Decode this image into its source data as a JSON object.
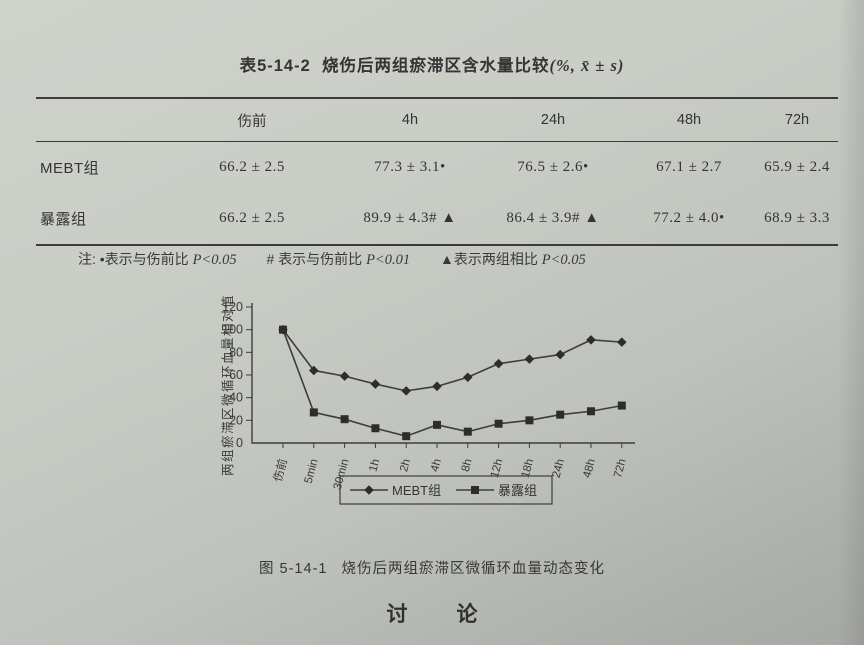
{
  "page": {
    "table_title": {
      "prefix": "表5-14-2",
      "main": "烧伤后两组瘀滞区含水量比较",
      "stat": "(%, x̄ ± s)"
    },
    "table": {
      "columns": [
        "",
        "伤前",
        "4h",
        "24h",
        "48h",
        "72h"
      ],
      "rows": [
        {
          "label": "MEBT组",
          "values": [
            "66.2 ± 2.5",
            "77.3 ± 3.1•",
            "76.5 ± 2.6•",
            "67.1 ± 2.7",
            "65.9 ± 2.4"
          ]
        },
        {
          "label": "暴露组",
          "values": [
            "66.2 ± 2.5",
            "89.9 ± 4.3# ▲",
            "86.4 ± 3.9# ▲",
            "77.2 ± 4.0•",
            "68.9 ± 3.3"
          ]
        }
      ]
    },
    "note": {
      "label": "注:",
      "items": [
        {
          "symbol": "•",
          "text": "表示与伤前比",
          "p": "P<0.05"
        },
        {
          "symbol": "#",
          "text": "表示与伤前比",
          "p": "P<0.01"
        },
        {
          "symbol": "▲",
          "text": "表示两组相比",
          "p": "P<0.05"
        }
      ]
    },
    "figure_caption": {
      "prefix": "图 5-14-1",
      "text": "烧伤后两组瘀滞区微循环血量动态变化"
    },
    "section_heading": "讨　论"
  },
  "chart_data": {
    "type": "line",
    "categories": [
      "伤前",
      "5min",
      "30min",
      "1h",
      "2h",
      "4h",
      "8h",
      "12h",
      "18h",
      "24h",
      "48h",
      "72h"
    ],
    "series": [
      {
        "name": "MEBT组",
        "marker": "diamond",
        "values": [
          100,
          64,
          59,
          52,
          46,
          50,
          58,
          70,
          74,
          78,
          91,
          89
        ]
      },
      {
        "name": "暴露组",
        "marker": "square",
        "values": [
          100,
          27,
          21,
          13,
          6,
          16,
          10,
          17,
          20,
          25,
          28,
          33
        ]
      }
    ],
    "title": "",
    "xlabel": "",
    "ylabel": "两组瘀滞区微循环血量相对值",
    "ylim": [
      0,
      120
    ],
    "ytick_step": 20,
    "grid": false,
    "legend_position": "bottom",
    "line_color": "#3d3d3d"
  }
}
